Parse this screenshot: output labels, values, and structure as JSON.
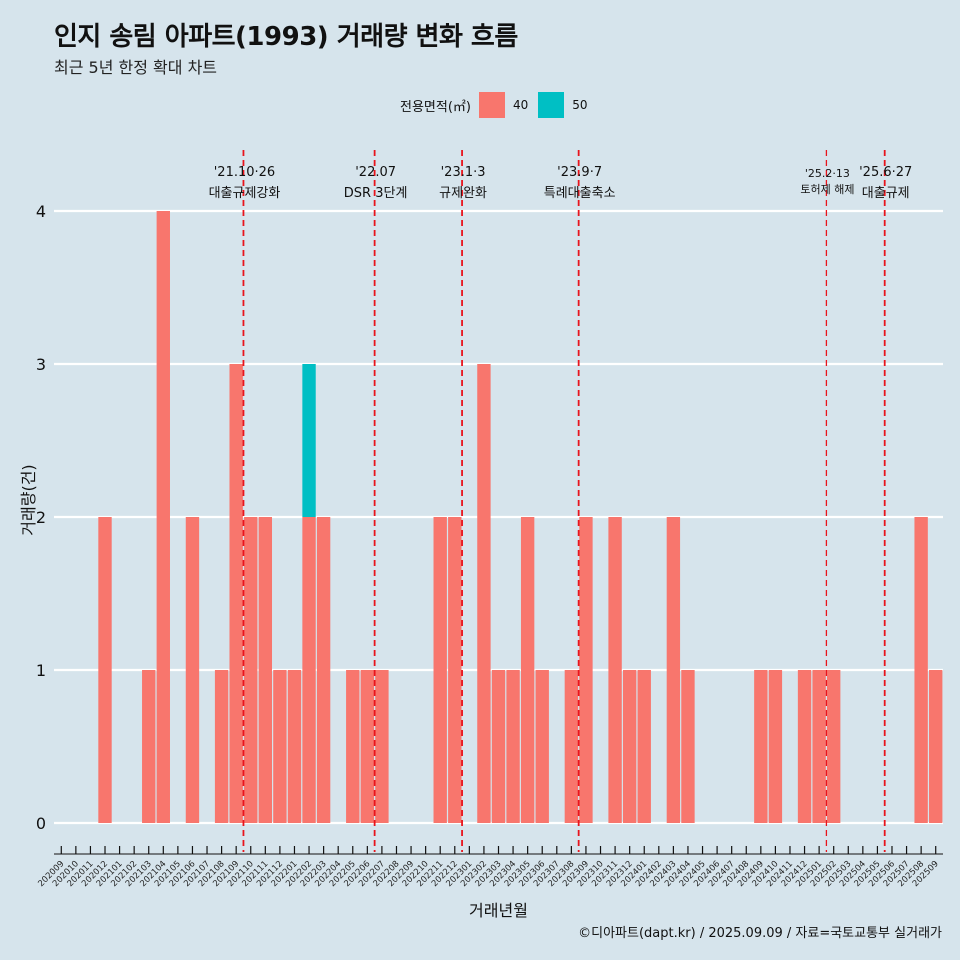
{
  "title": "인지 송림 아파트(1993) 거래량 변화 흐름",
  "subtitle": "최근 5년 한정 확대 차트",
  "legend": {
    "title": "전용면적(㎡)",
    "items": [
      {
        "label": "40",
        "color": "#f8766d"
      },
      {
        "label": "50",
        "color": "#00bfc4"
      }
    ]
  },
  "caption": "©디아파트(dapt.kr) / 2025.09.09 / 자료=국토교통부 실거래가",
  "chart_data": {
    "type": "bar",
    "stacked": true,
    "xlabel": "거래년월",
    "ylabel": "거래량(건)",
    "ylim": [
      0,
      4
    ],
    "yticks": [
      0,
      1,
      2,
      3,
      4
    ],
    "grid": true,
    "legend_position": "top",
    "categories": [
      "202009",
      "202010",
      "202011",
      "202012",
      "202101",
      "202102",
      "202103",
      "202104",
      "202105",
      "202106",
      "202107",
      "202108",
      "202109",
      "202110",
      "202111",
      "202112",
      "202201",
      "202202",
      "202203",
      "202204",
      "202205",
      "202206",
      "202207",
      "202208",
      "202209",
      "202210",
      "202211",
      "202212",
      "202301",
      "202302",
      "202303",
      "202304",
      "202305",
      "202306",
      "202307",
      "202308",
      "202309",
      "202310",
      "202311",
      "202312",
      "202401",
      "202402",
      "202403",
      "202404",
      "202405",
      "202406",
      "202407",
      "202408",
      "202409",
      "202410",
      "202411",
      "202412",
      "202501",
      "202502",
      "202503",
      "202504",
      "202505",
      "202506",
      "202507",
      "202508",
      "202509"
    ],
    "series": [
      {
        "name": "40",
        "color": "#f8766d",
        "values": [
          0,
          0,
          0,
          2,
          0,
          0,
          1,
          4,
          0,
          2,
          0,
          1,
          3,
          2,
          2,
          1,
          1,
          2,
          2,
          0,
          1,
          1,
          1,
          0,
          0,
          0,
          2,
          2,
          0,
          3,
          1,
          1,
          2,
          1,
          0,
          1,
          2,
          0,
          2,
          1,
          1,
          0,
          2,
          1,
          0,
          0,
          0,
          0,
          1,
          1,
          0,
          1,
          1,
          1,
          0,
          0,
          0,
          0,
          0,
          2,
          1
        ]
      },
      {
        "name": "50",
        "color": "#00bfc4",
        "values": [
          0,
          0,
          0,
          0,
          0,
          0,
          0,
          0,
          0,
          0,
          0,
          0,
          0,
          0,
          0,
          0,
          0,
          1,
          0,
          0,
          0,
          0,
          0,
          0,
          0,
          0,
          0,
          0,
          0,
          0,
          0,
          0,
          0,
          0,
          0,
          0,
          0,
          0,
          0,
          0,
          0,
          0,
          0,
          0,
          0,
          0,
          0,
          0,
          0,
          0,
          0,
          0,
          0,
          0,
          0,
          0,
          0,
          0,
          0,
          0,
          0
        ]
      }
    ],
    "events": [
      {
        "x": 13.0,
        "date": "'21.10·26",
        "label": "대출규제강화",
        "small": false
      },
      {
        "x": 22.0,
        "date": "'22.07",
        "label": "DSR 3단계",
        "small": false
      },
      {
        "x": 28.0,
        "date": "'23.1·3",
        "label": "규제완화",
        "small": false
      },
      {
        "x": 36.0,
        "date": "'23.9·7",
        "label": "특례대출축소",
        "small": false
      },
      {
        "x": 53.0,
        "date": "'25.2·13",
        "label": "토허제 해제",
        "small": true
      },
      {
        "x": 57.0,
        "date": "'25.6·27",
        "label": "대출규제",
        "small": false
      }
    ]
  }
}
